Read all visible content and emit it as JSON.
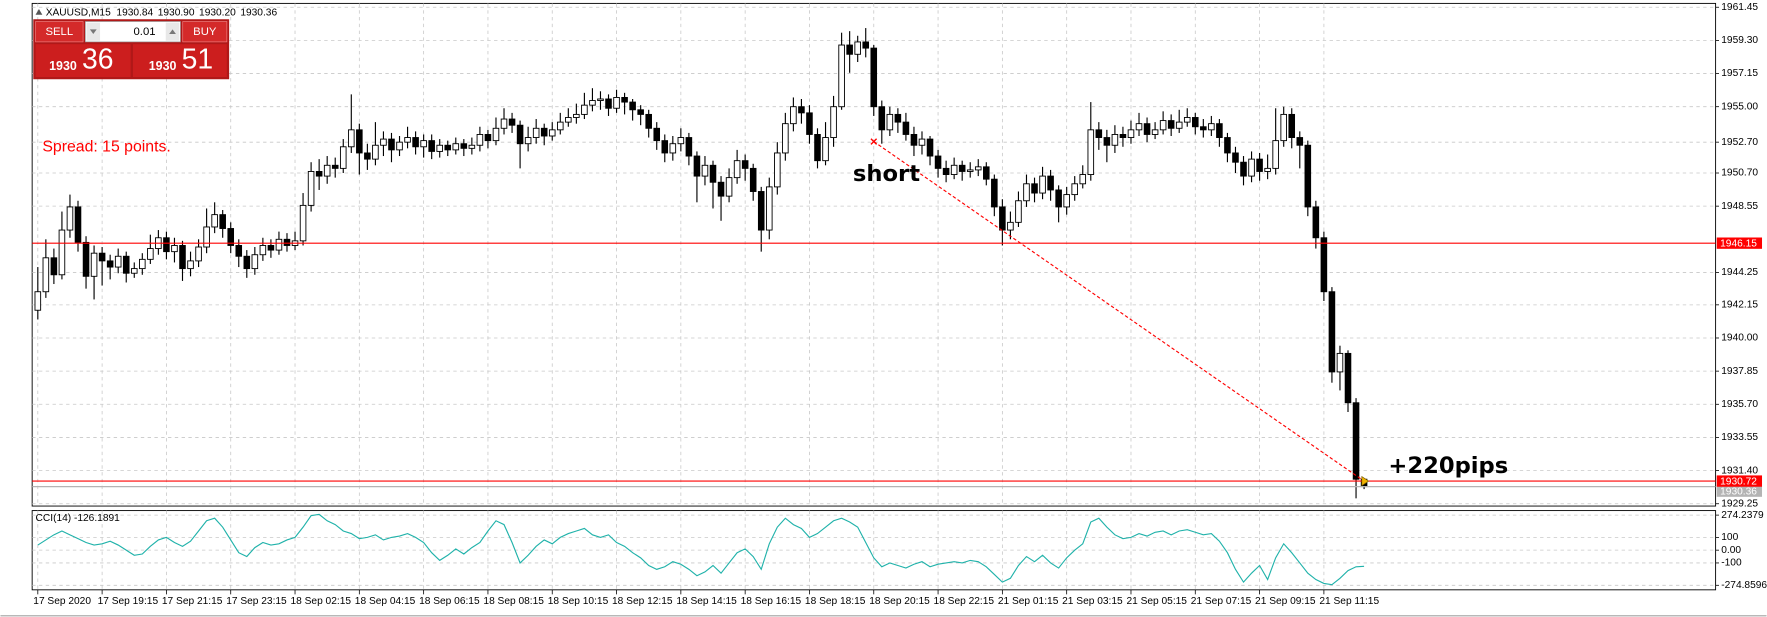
{
  "chart_data": [
    {
      "type": "candlestick",
      "title": "XAUUSD,M15",
      "quote": [
        "1930.84",
        "1930.90",
        "1930.20",
        "1930.36"
      ],
      "x": [
        "17 Sep 2020",
        null,
        null,
        null,
        null,
        null,
        null,
        null,
        "17 Sep 19:15",
        null,
        null,
        null,
        null,
        null,
        null,
        null,
        "17 Sep 21:15",
        null,
        null,
        null,
        null,
        null,
        null,
        null,
        "17 Sep 23:15",
        null,
        null,
        null,
        null,
        null,
        null,
        null,
        "18 Sep 02:15",
        null,
        null,
        null,
        null,
        null,
        null,
        null,
        "18 Sep 04:15",
        null,
        null,
        null,
        null,
        null,
        null,
        null,
        "18 Sep 06:15",
        null,
        null,
        null,
        null,
        null,
        null,
        null,
        "18 Sep 08:15",
        null,
        null,
        null,
        null,
        null,
        null,
        null,
        "18 Sep 10:15",
        null,
        null,
        null,
        null,
        null,
        null,
        null,
        "18 Sep 12:15",
        null,
        null,
        null,
        null,
        null,
        null,
        null,
        "18 Sep 14:15",
        null,
        null,
        null,
        null,
        null,
        null,
        null,
        "18 Sep 16:15",
        null,
        null,
        null,
        null,
        null,
        null,
        null,
        "18 Sep 18:15",
        null,
        null,
        null,
        null,
        null,
        null,
        null,
        "18 Sep 20:15",
        null,
        null,
        null,
        null,
        null,
        null,
        null,
        "18 Sep 22:15",
        null,
        null,
        null,
        null,
        null,
        null,
        null,
        "21 Sep 01:15",
        null,
        null,
        null,
        null,
        null,
        null,
        null,
        "21 Sep 03:15",
        null,
        null,
        null,
        null,
        null,
        null,
        null,
        "21 Sep 05:15",
        null,
        null,
        null,
        null,
        null,
        null,
        null,
        "21 Sep 07:15",
        null,
        null,
        null,
        null,
        null,
        null,
        null,
        "21 Sep 09:15",
        null,
        null,
        null,
        null,
        null,
        null,
        null,
        "21 Sep 11:15",
        null,
        null,
        null,
        null,
        null
      ],
      "open": [
        1941.8,
        1943.0,
        1945.2,
        1944.1,
        1947.0,
        1948.5,
        1946.2,
        1944.0,
        1945.5,
        1945.0,
        1944.6,
        1945.3,
        1944.2,
        1944.5,
        1945.1,
        1945.8,
        1946.5,
        1945.6,
        1946.0,
        1944.5,
        1945.0,
        1945.9,
        1947.2,
        1948.0,
        1947.1,
        1946.0,
        1945.3,
        1944.5,
        1945.4,
        1946.0,
        1945.7,
        1946.4,
        1946.0,
        1946.3,
        1948.6,
        1950.8,
        1950.5,
        1951.2,
        1951.0,
        1952.4,
        1953.5,
        1952.0,
        1951.6,
        1952.5,
        1952.9,
        1952.2,
        1952.7,
        1953.0,
        1952.4,
        1952.8,
        1952.1,
        1952.5,
        1952.2,
        1952.6,
        1952.3,
        1952.5,
        1953.2,
        1952.8,
        1953.6,
        1954.2,
        1953.8,
        1952.6,
        1953.0,
        1953.6,
        1953.1,
        1953.5,
        1954.0,
        1954.3,
        1954.5,
        1955.1,
        1955.4,
        1955.5,
        1954.9,
        1955.6,
        1955.3,
        1954.8,
        1954.5,
        1953.6,
        1952.8,
        1952.0,
        1952.6,
        1953.0,
        1951.8,
        1950.5,
        1951.2,
        1950.1,
        1949.2,
        1950.4,
        1951.5,
        1951.0,
        1949.5,
        1947.0,
        1949.8,
        1952.0,
        1953.9,
        1955.0,
        1954.6,
        1953.2,
        1951.5,
        1953.0,
        1955.0,
        1959.0,
        1958.4,
        1959.2,
        1958.8,
        1955.0,
        1953.5,
        1954.5,
        1954.0,
        1953.2,
        1952.5,
        1952.9,
        1951.8,
        1951.0,
        1950.6,
        1951.2,
        1950.8,
        1950.9,
        1951.1,
        1950.3,
        1948.5,
        1947.0,
        1947.5,
        1948.9,
        1950.0,
        1949.4,
        1950.5,
        1949.6,
        1948.5,
        1949.3,
        1950.0,
        1950.6,
        1953.5,
        1953.0,
        1952.5,
        1953.2,
        1953.0,
        1953.5,
        1953.9,
        1953.2,
        1953.5,
        1954.1,
        1953.6,
        1954.0,
        1954.3,
        1953.7,
        1953.5,
        1953.9,
        1953.0,
        1952.0,
        1951.4,
        1950.5,
        1951.6,
        1950.8,
        1951.0,
        1952.8,
        1954.5,
        1953.0,
        1952.5,
        1948.5,
        1946.5,
        1943.0,
        1937.8,
        1939.0,
        1935.8,
        1930.84
      ],
      "high": [
        1944.6,
        1946.4,
        1945.8,
        1948.2,
        1949.3,
        1948.9,
        1946.6,
        1946.0,
        1945.9,
        1945.4,
        1945.8,
        1945.6,
        1944.9,
        1945.5,
        1946.7,
        1947.0,
        1946.9,
        1946.5,
        1946.3,
        1945.6,
        1946.4,
        1948.4,
        1948.8,
        1948.3,
        1947.5,
        1946.4,
        1945.7,
        1945.9,
        1946.5,
        1946.4,
        1946.9,
        1946.8,
        1946.9,
        1949.4,
        1951.4,
        1951.6,
        1951.8,
        1951.7,
        1952.9,
        1955.8,
        1953.9,
        1952.6,
        1954.0,
        1953.4,
        1953.3,
        1953.1,
        1953.7,
        1953.4,
        1953.2,
        1953.2,
        1952.9,
        1952.8,
        1953.0,
        1952.9,
        1953.0,
        1953.7,
        1953.5,
        1954.3,
        1954.9,
        1954.6,
        1954.1,
        1953.7,
        1954.2,
        1953.9,
        1954.0,
        1954.6,
        1954.9,
        1955.2,
        1955.9,
        1956.2,
        1956.0,
        1955.8,
        1956.1,
        1955.9,
        1955.5,
        1955.1,
        1954.8,
        1954.0,
        1953.2,
        1953.1,
        1953.6,
        1953.3,
        1952.1,
        1951.8,
        1951.5,
        1950.5,
        1951.0,
        1952.2,
        1951.9,
        1951.3,
        1949.8,
        1950.4,
        1952.7,
        1954.6,
        1955.6,
        1955.5,
        1955.1,
        1953.6,
        1954.0,
        1955.7,
        1959.8,
        1959.9,
        1959.6,
        1960.1,
        1959.0,
        1955.4,
        1955.0,
        1954.9,
        1954.6,
        1953.7,
        1953.4,
        1953.1,
        1952.2,
        1951.5,
        1951.7,
        1951.5,
        1951.4,
        1951.6,
        1951.4,
        1950.6,
        1949.0,
        1948.2,
        1949.5,
        1950.6,
        1950.4,
        1951.1,
        1950.9,
        1949.9,
        1949.8,
        1950.5,
        1951.2,
        1955.3,
        1954.0,
        1953.5,
        1953.8,
        1953.7,
        1954.1,
        1954.6,
        1954.3,
        1954.0,
        1954.7,
        1954.5,
        1954.8,
        1954.9,
        1954.6,
        1954.2,
        1954.4,
        1954.2,
        1953.3,
        1952.4,
        1951.8,
        1952.1,
        1952.0,
        1951.9,
        1954.9,
        1955.0,
        1954.9,
        1953.4,
        1952.8,
        1948.9,
        1946.9,
        1943.3,
        1939.5,
        1939.2,
        1936.1,
        1930.9
      ],
      "low": [
        1941.2,
        1942.6,
        1943.5,
        1943.8,
        1946.5,
        1945.6,
        1943.2,
        1942.5,
        1943.4,
        1943.8,
        1944.2,
        1943.6,
        1943.9,
        1944.1,
        1944.8,
        1945.4,
        1945.1,
        1944.9,
        1943.7,
        1944.0,
        1944.6,
        1945.5,
        1946.8,
        1946.5,
        1945.5,
        1944.6,
        1943.9,
        1944.1,
        1945.0,
        1945.2,
        1945.4,
        1945.6,
        1945.7,
        1946.0,
        1948.2,
        1949.6,
        1950.0,
        1950.4,
        1950.7,
        1952.0,
        1950.6,
        1950.9,
        1951.2,
        1951.8,
        1951.4,
        1951.8,
        1952.3,
        1951.9,
        1951.7,
        1951.6,
        1951.7,
        1951.8,
        1951.9,
        1951.8,
        1951.9,
        1952.1,
        1952.3,
        1952.5,
        1953.2,
        1953.3,
        1951.0,
        1952.1,
        1952.6,
        1952.5,
        1952.8,
        1953.2,
        1953.7,
        1953.9,
        1954.2,
        1954.7,
        1954.8,
        1954.4,
        1954.6,
        1954.5,
        1954.1,
        1953.8,
        1953.0,
        1952.2,
        1951.4,
        1951.5,
        1952.1,
        1951.2,
        1948.8,
        1949.9,
        1948.4,
        1947.6,
        1948.8,
        1950.0,
        1950.2,
        1948.9,
        1945.6,
        1946.4,
        1949.3,
        1951.5,
        1953.4,
        1953.9,
        1952.6,
        1951.0,
        1951.2,
        1952.4,
        1954.8,
        1957.2,
        1957.9,
        1958.2,
        1954.4,
        1952.6,
        1953.1,
        1953.3,
        1952.8,
        1951.8,
        1951.9,
        1951.2,
        1950.4,
        1950.1,
        1950.3,
        1950.2,
        1950.4,
        1950.5,
        1949.9,
        1947.9,
        1946.0,
        1946.4,
        1947.2,
        1948.5,
        1948.8,
        1949.0,
        1948.9,
        1947.5,
        1948.0,
        1948.9,
        1949.7,
        1950.2,
        1952.2,
        1951.4,
        1952.0,
        1952.4,
        1952.6,
        1953.1,
        1952.7,
        1952.9,
        1953.2,
        1953.1,
        1953.3,
        1953.7,
        1953.2,
        1953.0,
        1953.1,
        1952.4,
        1951.4,
        1950.7,
        1949.9,
        1950.1,
        1950.2,
        1950.3,
        1950.6,
        1952.4,
        1952.3,
        1951.0,
        1947.9,
        1945.8,
        1942.4,
        1937.1,
        1936.6,
        1935.2,
        1929.6,
        1930.2
      ],
      "close": [
        1943.0,
        1945.2,
        1944.1,
        1947.0,
        1948.5,
        1946.2,
        1944.0,
        1945.5,
        1945.0,
        1944.6,
        1945.3,
        1944.2,
        1944.5,
        1945.1,
        1945.8,
        1946.5,
        1945.6,
        1946.0,
        1944.5,
        1945.0,
        1945.9,
        1947.2,
        1948.0,
        1947.1,
        1946.0,
        1945.3,
        1944.5,
        1945.4,
        1946.0,
        1945.7,
        1946.4,
        1946.0,
        1946.3,
        1948.6,
        1950.8,
        1950.5,
        1951.2,
        1951.0,
        1952.4,
        1953.5,
        1952.0,
        1951.6,
        1952.5,
        1952.9,
        1952.2,
        1952.7,
        1953.0,
        1952.4,
        1952.8,
        1952.1,
        1952.5,
        1952.2,
        1952.6,
        1952.3,
        1952.5,
        1953.2,
        1952.8,
        1953.6,
        1954.2,
        1953.8,
        1952.6,
        1953.0,
        1953.6,
        1953.1,
        1953.5,
        1954.0,
        1954.3,
        1954.5,
        1955.1,
        1955.4,
        1955.5,
        1954.9,
        1955.6,
        1955.3,
        1954.8,
        1954.5,
        1953.6,
        1952.8,
        1952.0,
        1952.6,
        1953.0,
        1951.8,
        1950.5,
        1951.2,
        1950.1,
        1949.2,
        1950.4,
        1951.5,
        1951.0,
        1949.5,
        1947.0,
        1949.8,
        1952.0,
        1953.9,
        1955.0,
        1954.6,
        1953.2,
        1951.5,
        1953.0,
        1955.0,
        1959.0,
        1958.4,
        1959.2,
        1958.8,
        1955.0,
        1953.5,
        1954.5,
        1954.0,
        1953.2,
        1952.5,
        1952.9,
        1951.8,
        1951.0,
        1950.6,
        1951.2,
        1950.8,
        1950.9,
        1951.1,
        1950.3,
        1948.5,
        1947.0,
        1947.5,
        1948.9,
        1950.0,
        1949.4,
        1950.5,
        1949.6,
        1948.5,
        1949.3,
        1950.0,
        1950.6,
        1953.5,
        1953.0,
        1952.5,
        1953.2,
        1953.0,
        1953.5,
        1953.9,
        1953.2,
        1953.5,
        1954.1,
        1953.6,
        1954.0,
        1954.3,
        1953.7,
        1953.5,
        1953.9,
        1953.0,
        1952.0,
        1951.4,
        1950.5,
        1951.6,
        1950.8,
        1951.0,
        1952.8,
        1954.5,
        1953.0,
        1952.5,
        1948.5,
        1946.5,
        1943.0,
        1937.8,
        1939.0,
        1935.8,
        1930.84,
        1930.36
      ],
      "up_color": "#ffffff",
      "down_color": "#000000",
      "wick_color": "#000000",
      "ylim": [
        1929.1,
        1961.7
      ],
      "yticks": [
        1961.45,
        {
          "value": 1959.3,
          "label": "1959.30"
        },
        1957.15,
        {
          "value": 1955,
          "label": "1955.00"
        },
        {
          "value": 1952.7,
          "label": "1952.70"
        },
        {
          "value": 1950.7,
          "label": "1950.70"
        },
        1948.55,
        1944.25,
        1942.15,
        {
          "value": 1940,
          "label": "1940.00"
        },
        1937.85,
        {
          "value": 1935.7,
          "label": "1935.70"
        },
        1933.55,
        {
          "value": 1931.4,
          "label": "1931.40"
        },
        1929.25
      ],
      "grid": true,
      "hlines": [
        {
          "value": 1946.15,
          "color": "#ff0000"
        },
        {
          "value": 1930.36,
          "color": "#b4b4b4"
        },
        {
          "value": 1930.72,
          "color": "#ff0000"
        }
      ],
      "trade": {
        "entry_bar": 104,
        "entry_price": 1952.74,
        "exit_bar": 165,
        "exit_price": 1930.72,
        "color": "#ff0000"
      },
      "annotations": {
        "spread": "Spread: 15 points.",
        "entry": "short",
        "result": "+220pips"
      }
    },
    {
      "type": "line",
      "title": "CCI(14) -126.1891",
      "color": "#20b2aa",
      "values": [
        40,
        80,
        120,
        150,
        120,
        90,
        60,
        40,
        50,
        70,
        40,
        0,
        -40,
        -30,
        30,
        80,
        100,
        60,
        30,
        70,
        150,
        230,
        250,
        180,
        80,
        -20,
        -50,
        20,
        60,
        40,
        50,
        80,
        100,
        180,
        270,
        280,
        230,
        200,
        150,
        130,
        90,
        100,
        120,
        80,
        100,
        110,
        130,
        100,
        60,
        -20,
        -80,
        -40,
        10,
        -30,
        20,
        60,
        150,
        230,
        200,
        60,
        -100,
        -40,
        30,
        80,
        50,
        100,
        130,
        150,
        170,
        120,
        100,
        120,
        60,
        30,
        -20,
        -60,
        -120,
        -150,
        -130,
        -90,
        -110,
        -150,
        -200,
        -170,
        -120,
        -180,
        -100,
        -20,
        10,
        -50,
        -150,
        50,
        180,
        250,
        200,
        170,
        100,
        130,
        180,
        230,
        250,
        220,
        180,
        60,
        -60,
        -130,
        -100,
        -120,
        -140,
        -110,
        -90,
        -130,
        -110,
        -100,
        -90,
        -100,
        -80,
        -90,
        -130,
        -190,
        -250,
        -220,
        -120,
        -50,
        -90,
        -40,
        -100,
        -140,
        -60,
        0,
        50,
        220,
        250,
        180,
        120,
        90,
        100,
        130,
        110,
        140,
        150,
        120,
        150,
        160,
        140,
        120,
        130,
        70,
        -20,
        -150,
        -250,
        -180,
        -120,
        -230,
        -60,
        50,
        -20,
        -100,
        -180,
        -230,
        -260,
        -270,
        -220,
        -160,
        -130,
        -126.1891
      ],
      "ylim": [
        -274.8596,
        274.2379
      ],
      "yticks": [
        274.2379,
        100,
        {
          "value": 0,
          "label": "0.00"
        },
        -100,
        -274.8596
      ],
      "grid": true
    }
  ],
  "trade_panel": {
    "sell": "SELL",
    "volume": "0.01",
    "buy": "BUY",
    "bid_big": "1930",
    "bid_small": "36",
    "ask_big": "1930",
    "ask_small": "51"
  }
}
